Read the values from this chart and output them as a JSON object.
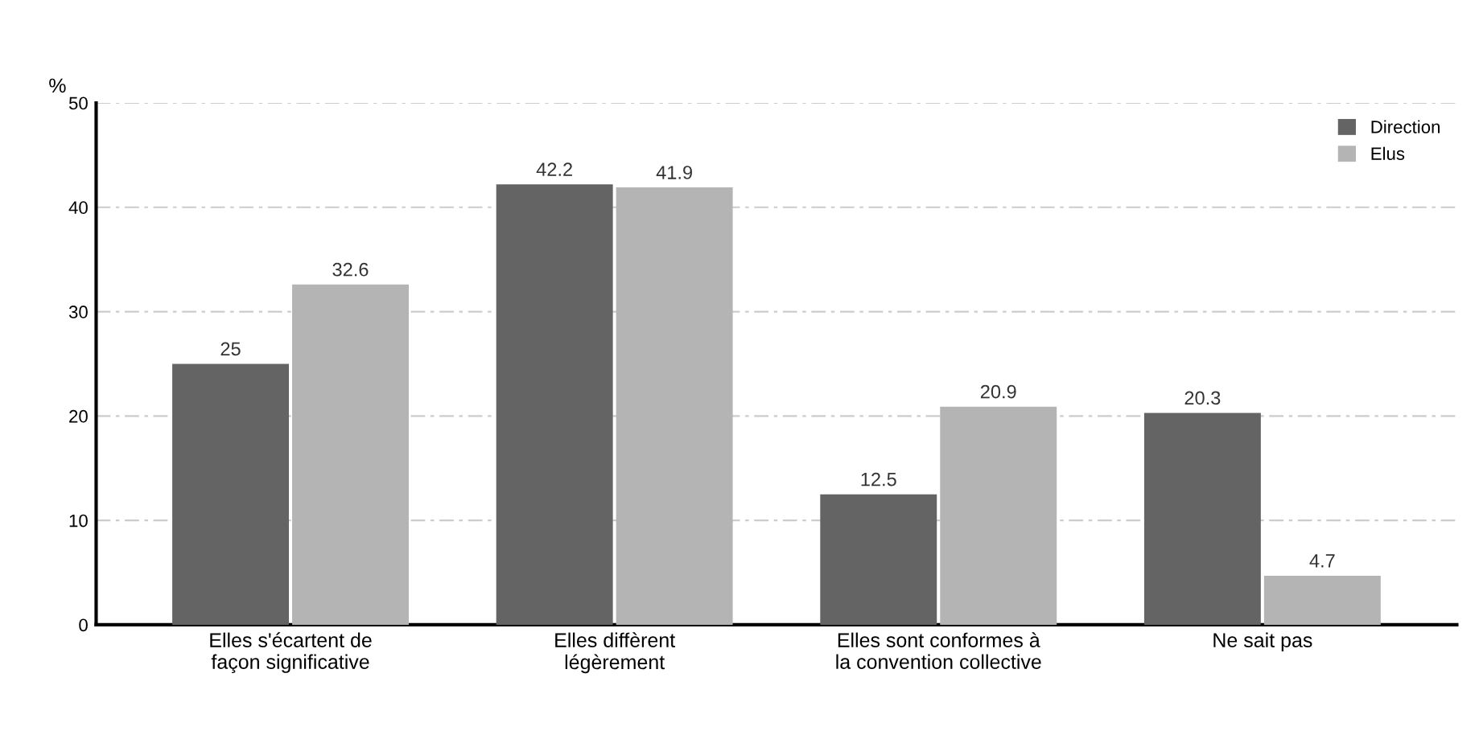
{
  "chart_data": {
    "type": "bar",
    "ylabel": "%",
    "categories": [
      "Elles s'écartent de\nfaçon significative",
      "Elles diffèrent\nlégèrement",
      "Elles sont conformes à\nla convention collective",
      "Ne sait pas"
    ],
    "series": [
      {
        "name": "Direction",
        "color": "#646464",
        "values": [
          25,
          42.2,
          12.5,
          20.3
        ]
      },
      {
        "name": "Elus",
        "color": "#b4b4b4",
        "values": [
          32.6,
          41.9,
          20.9,
          4.7
        ]
      }
    ],
    "ylim": [
      0,
      50
    ],
    "yticks": [
      0,
      10,
      20,
      30,
      40,
      50
    ],
    "grid": "y",
    "legend": "top right",
    "data_labels": true
  }
}
